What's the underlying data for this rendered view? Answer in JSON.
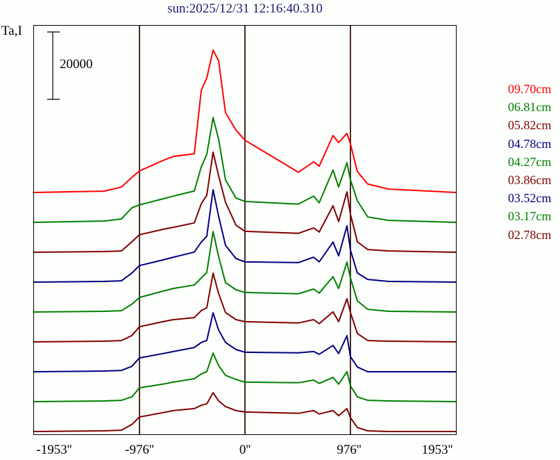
{
  "title": "sun:2025/12/31 12:16:40.310",
  "chart_data": {
    "type": "line",
    "title": "sun:2025/12/31 12:16:40.310",
    "ylabel": "Ta,I",
    "xlabel": "",
    "scale_bar": {
      "value": 20000,
      "label": "20000"
    },
    "x_ticks": [
      {
        "value": -1953,
        "label": "-1953''"
      },
      {
        "value": -976,
        "label": "-976''"
      },
      {
        "value": 0,
        "label": "0''"
      },
      {
        "value": 976,
        "label": "976''"
      },
      {
        "value": 1953,
        "label": "1953''"
      }
    ],
    "vertical_lines": [
      -976,
      0,
      976
    ],
    "xlim": [
      -1953,
      1953
    ],
    "stacked_offset": true,
    "legend_placement": "right",
    "x": [
      -1953,
      -1303,
      -1143,
      -1046,
      -976,
      -758,
      -662,
      -469,
      -404,
      -353,
      -295,
      -244,
      -180,
      -83,
      0,
      494,
      636,
      687,
      815,
      867,
      944,
      976,
      1040,
      1136,
      1329,
      1953
    ],
    "series": [
      {
        "name": "09.70cm",
        "color": "#ff0000",
        "values": [
          0,
          400,
          1600,
          4500,
          6400,
          9500,
          10700,
          11500,
          30300,
          34000,
          42200,
          39100,
          23700,
          18500,
          15500,
          6000,
          9100,
          7800,
          16900,
          14800,
          17500,
          14400,
          6200,
          2500,
          1000,
          0
        ]
      },
      {
        "name": "06.81cm",
        "color": "#008000",
        "values": [
          0,
          400,
          1000,
          4300,
          5200,
          7000,
          7800,
          9300,
          16500,
          20200,
          31100,
          24700,
          12600,
          7200,
          6200,
          5400,
          7800,
          5800,
          15500,
          10500,
          17700,
          12600,
          6400,
          1600,
          600,
          0
        ]
      },
      {
        "name": "05.82cm",
        "color": "#800000",
        "values": [
          0,
          200,
          400,
          3100,
          5200,
          6800,
          7400,
          8700,
          14400,
          16900,
          29700,
          22700,
          14800,
          8000,
          6200,
          5600,
          7200,
          6000,
          13800,
          9100,
          17900,
          11300,
          3100,
          800,
          400,
          0
        ]
      },
      {
        "name": "04.78cm",
        "color": "#000080",
        "values": [
          0,
          200,
          400,
          2700,
          4900,
          6600,
          7400,
          8900,
          11900,
          13600,
          27400,
          19600,
          10900,
          7000,
          6000,
          5800,
          7400,
          6000,
          11900,
          7800,
          16700,
          9500,
          2700,
          800,
          200,
          0
        ]
      },
      {
        "name": "04.27cm",
        "color": "#008000",
        "values": [
          0,
          200,
          400,
          2300,
          4300,
          6200,
          7000,
          8000,
          10100,
          11700,
          23900,
          16500,
          8700,
          6600,
          5800,
          5400,
          6800,
          5600,
          10500,
          7000,
          14800,
          10100,
          3300,
          800,
          200,
          0
        ]
      },
      {
        "name": "03.86cm",
        "color": "#800000",
        "values": [
          0,
          200,
          400,
          1900,
          4500,
          6000,
          6600,
          7200,
          9300,
          10100,
          20400,
          14400,
          8700,
          6600,
          6000,
          5600,
          6600,
          5400,
          8900,
          6000,
          12800,
          8700,
          2500,
          400,
          200,
          0
        ]
      },
      {
        "name": "03.52cm",
        "color": "#000080",
        "values": [
          0,
          200,
          400,
          1600,
          4100,
          5400,
          6000,
          7200,
          8700,
          9300,
          17500,
          12400,
          8700,
          6600,
          5800,
          5600,
          6000,
          5200,
          7800,
          5400,
          10700,
          4500,
          1400,
          0,
          0,
          0
        ]
      },
      {
        "name": "03.17cm",
        "color": "#008000",
        "values": [
          0,
          200,
          400,
          1400,
          4100,
          5200,
          5800,
          6800,
          8200,
          8900,
          14400,
          10700,
          7800,
          6600,
          5800,
          5600,
          6400,
          5400,
          7200,
          5200,
          8900,
          4700,
          1400,
          400,
          200,
          0
        ]
      },
      {
        "name": "02.78cm",
        "color": "#800000",
        "values": [
          0,
          200,
          400,
          2100,
          4300,
          5600,
          6200,
          6800,
          7800,
          8200,
          11500,
          9100,
          7400,
          6200,
          5800,
          5400,
          6200,
          5200,
          6200,
          4700,
          6800,
          4100,
          1200,
          200,
          0,
          0
        ]
      }
    ]
  }
}
